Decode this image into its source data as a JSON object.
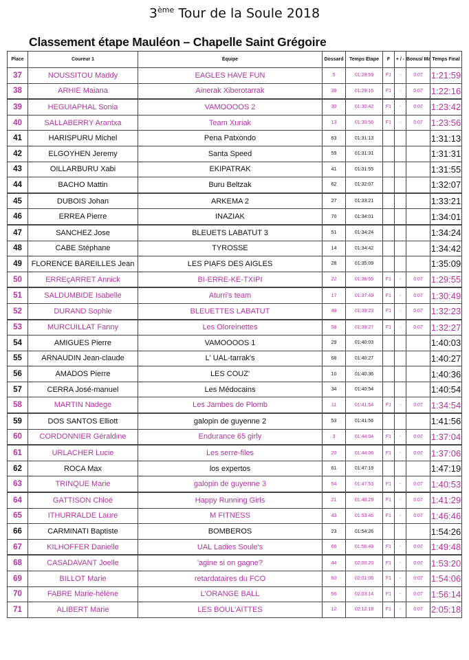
{
  "header": {
    "title_num": "3",
    "title_sup": "ème",
    "title_rest": "Tour de la Soule 2018",
    "subtitle": "Classement étape Mauléon – Chapelle Saint Grégoire"
  },
  "colors": {
    "female_team": "#b0359d",
    "default": "#111111"
  },
  "columns": [
    "Place",
    "Coureur 1",
    "Équipe",
    "Dossard",
    "Temps Étape",
    "F",
    "+ / -",
    "Bonus/ Malus",
    "Temps Final"
  ],
  "rows": [
    {
      "place": "37",
      "coureur": "NOUSSITOU Maddy",
      "equipe": "EAGLES HAVE FUN",
      "dossard": "5",
      "etape": "01:28:59",
      "f": "F1",
      "pm": "-",
      "bonus": "0:07",
      "final": "1:21:59"
    },
    {
      "place": "38",
      "coureur": "ARHIE Maiana",
      "equipe": "Ainerak Xiberotarrak",
      "dossard": "39",
      "etape": "01:29:16",
      "f": "F1",
      "pm": "-",
      "bonus": "0:07",
      "final": "1:22:16"
    },
    {
      "place": "39",
      "coureur": "HEGUIAPHAL Sonia",
      "equipe": "VAMOOOOS 2",
      "dossard": "30",
      "etape": "01:30:42",
      "f": "F1",
      "pm": "-",
      "bonus": "0:07",
      "final": "1:23:42"
    },
    {
      "place": "40",
      "coureur": "SALLABERRY Arantxa",
      "equipe": "Team Xuriak",
      "dossard": "13",
      "etape": "01:30:56",
      "f": "F1",
      "pm": "-",
      "bonus": "0:07",
      "final": "1:23:56"
    },
    {
      "place": "41",
      "coureur": "HARISPURU Michel",
      "equipe": "Pena Patxondo",
      "dossard": "63",
      "etape": "01:31:13",
      "f": "",
      "pm": "",
      "bonus": "",
      "final": "1:31:13"
    },
    {
      "place": "42",
      "coureur": "ELGOYHEN Jeremy",
      "equipe": "Santa Speed",
      "dossard": "59",
      "etape": "01:31:31",
      "f": "",
      "pm": "",
      "bonus": "",
      "final": "1:31:31"
    },
    {
      "place": "43",
      "coureur": "OILLARBURU Xabi",
      "equipe": "EKIPATRAK",
      "dossard": "41",
      "etape": "01:31:55",
      "f": "",
      "pm": "",
      "bonus": "",
      "final": "1:31:55"
    },
    {
      "place": "44",
      "coureur": "BACHO Mattin",
      "equipe": "Buru Beltzak",
      "dossard": "62",
      "etape": "01:32:07",
      "f": "",
      "pm": "",
      "bonus": "",
      "final": "1:32:07"
    },
    {
      "place": "45",
      "coureur": "DUBOIS Johan",
      "equipe": "ARKEMA 2",
      "dossard": "27",
      "etape": "01:33:21",
      "f": "",
      "pm": "",
      "bonus": "",
      "final": "1:33:21"
    },
    {
      "place": "46",
      "coureur": "ERREA Pierre",
      "equipe": "INAZIAK",
      "dossard": "70",
      "etape": "01:34:01",
      "f": "",
      "pm": "",
      "bonus": "",
      "final": "1:34:01"
    },
    {
      "place": "47",
      "coureur": "SANCHEZ Jose",
      "equipe": "BLEUETS LABATUT 3",
      "dossard": "51",
      "etape": "01:34:24",
      "f": "",
      "pm": "",
      "bonus": "",
      "final": "1:34:24"
    },
    {
      "place": "48",
      "coureur": "CABE Stéphane",
      "equipe": "TYROSSE",
      "dossard": "14",
      "etape": "01:34:42",
      "f": "",
      "pm": "",
      "bonus": "",
      "final": "1:34:42"
    },
    {
      "place": "49",
      "coureur": "FLORENCE BAREILLES Jean",
      "equipe": "LES PIAFS DES AIGLES",
      "dossard": "28",
      "etape": "01:35:09",
      "f": "",
      "pm": "",
      "bonus": "",
      "final": "1:35:09"
    },
    {
      "place": "50",
      "coureur": "ERREçARRET Annick",
      "equipe": "BI-ERRE-KE-TXIPI",
      "dossard": "22",
      "etape": "01:36:55",
      "f": "F1",
      "pm": "-",
      "bonus": "0:07",
      "final": "1:29:55"
    },
    {
      "place": "51",
      "coureur": "SALDUMBIDE Isabelle",
      "equipe": "Aturri's team",
      "dossard": "17",
      "etape": "01:37:49",
      "f": "F1",
      "pm": "-",
      "bonus": "0:07",
      "final": "1:30:49"
    },
    {
      "place": "52",
      "coureur": "DURAND Sophie",
      "equipe": "BLEUETTES LABATUT",
      "dossard": "48",
      "etape": "01:39:23",
      "f": "F1",
      "pm": "-",
      "bonus": "0:07",
      "final": "1:32:23"
    },
    {
      "place": "53",
      "coureur": "MURCUILLAT Fanny",
      "equipe": "Les Oloreinettes",
      "dossard": "58",
      "etape": "01:39:27",
      "f": "F1",
      "pm": "-",
      "bonus": "0:07",
      "final": "1:32:27"
    },
    {
      "place": "54",
      "coureur": "AMIGUES Pierre",
      "equipe": "VAMOOOOS 1",
      "dossard": "29",
      "etape": "01:40:03",
      "f": "",
      "pm": "",
      "bonus": "",
      "final": "1:40:03"
    },
    {
      "place": "55",
      "coureur": "ARNAUDIN Jean-claude",
      "equipe": "L' UAL-tarrak's",
      "dossard": "68",
      "etape": "01:40:27",
      "f": "",
      "pm": "",
      "bonus": "",
      "final": "1:40:27"
    },
    {
      "place": "56",
      "coureur": "AMADOS Pierre",
      "equipe": "LES COUZ'",
      "dossard": "10",
      "etape": "01:40:36",
      "f": "",
      "pm": "",
      "bonus": "",
      "final": "1:40:36"
    },
    {
      "place": "57",
      "coureur": "CERRA José-manuel",
      "equipe": "Les Médocains",
      "dossard": "34",
      "etape": "01:40:54",
      "f": "",
      "pm": "",
      "bonus": "",
      "final": "1:40:54"
    },
    {
      "place": "58",
      "coureur": "MARTIN Nadege",
      "equipe": "Les Jambes de Plomb",
      "dossard": "11",
      "etape": "01:41:54",
      "f": "F1",
      "pm": "-",
      "bonus": "0:07",
      "final": "1:34:54"
    },
    {
      "place": "59",
      "coureur": "DOS SANTOS Elliott",
      "equipe": "galopin de guyenne 2",
      "dossard": "53",
      "etape": "01:41:56",
      "f": "",
      "pm": "",
      "bonus": "",
      "final": "1:41:56"
    },
    {
      "place": "60",
      "coureur": "CORDONNIER Géraldine",
      "equipe": "Endurance 65 girly",
      "dossard": "3",
      "etape": "01:44:04",
      "f": "F1",
      "pm": "-",
      "bonus": "0:07",
      "final": "1:37:04"
    },
    {
      "place": "61",
      "coureur": "URLACHER Lucie",
      "equipe": "Les serre-files",
      "dossard": "20",
      "etape": "01:44:06",
      "f": "F1",
      "pm": "-",
      "bonus": "0:07",
      "final": "1:37:06"
    },
    {
      "place": "62",
      "coureur": "ROCA Max",
      "equipe": "los expertos",
      "dossard": "61",
      "etape": "01:47:19",
      "f": "",
      "pm": "",
      "bonus": "",
      "final": "1:47:19"
    },
    {
      "place": "63",
      "coureur": "TRINQUE Marie",
      "equipe": "galopin de guyenne 3",
      "dossard": "54",
      "etape": "01:47:53",
      "f": "F1",
      "pm": "-",
      "bonus": "0:07",
      "final": "1:40:53"
    },
    {
      "place": "64",
      "coureur": "GATTISON Chloé",
      "equipe": "Happy Running Girls",
      "dossard": "21",
      "etape": "01:48:29",
      "f": "F1",
      "pm": "-",
      "bonus": "0:07",
      "final": "1:41:29"
    },
    {
      "place": "65",
      "coureur": "ITHURRALDE Laure",
      "equipe": "M FITNESS",
      "dossard": "43",
      "etape": "01:53:46",
      "f": "F1",
      "pm": "-",
      "bonus": "0:07",
      "final": "1:46:46"
    },
    {
      "place": "66",
      "coureur": "CARMINATI Baptiste",
      "equipe": "BOMBEROS",
      "dossard": "23",
      "etape": "01:54:26",
      "f": "",
      "pm": "",
      "bonus": "",
      "final": "1:54:26"
    },
    {
      "place": "67",
      "coureur": "KILHOFFER Danielle",
      "equipe": "UAL Ladies Soule's",
      "dossard": "66",
      "etape": "01:56:48",
      "f": "F1",
      "pm": "-",
      "bonus": "0:07",
      "final": "1:49:48"
    },
    {
      "place": "68",
      "coureur": "CASADAVANT Joelle",
      "equipe": "'agine si on gagne?",
      "dossard": "44",
      "etape": "02:00:20",
      "f": "F1",
      "pm": "-",
      "bonus": "0:07",
      "final": "1:53:20"
    },
    {
      "place": "69",
      "coureur": "BILLOT Marie",
      "equipe": "retardataires du FCO",
      "dossard": "60",
      "etape": "02:01:06",
      "f": "F1",
      "pm": "-",
      "bonus": "0:07",
      "final": "1:54:06"
    },
    {
      "place": "70",
      "coureur": "FABRE Marie-hélène",
      "equipe": "L'ORANGE BALL",
      "dossard": "56",
      "etape": "02:03:14",
      "f": "F1",
      "pm": "-",
      "bonus": "0:07",
      "final": "1:56:14"
    },
    {
      "place": "71",
      "coureur": "ALIBERT Marie",
      "equipe": "LES BOUL'AITTES",
      "dossard": "12",
      "etape": "02:12:18",
      "f": "F1",
      "pm": "-",
      "bonus": "0:07",
      "final": "2:05:18"
    }
  ]
}
